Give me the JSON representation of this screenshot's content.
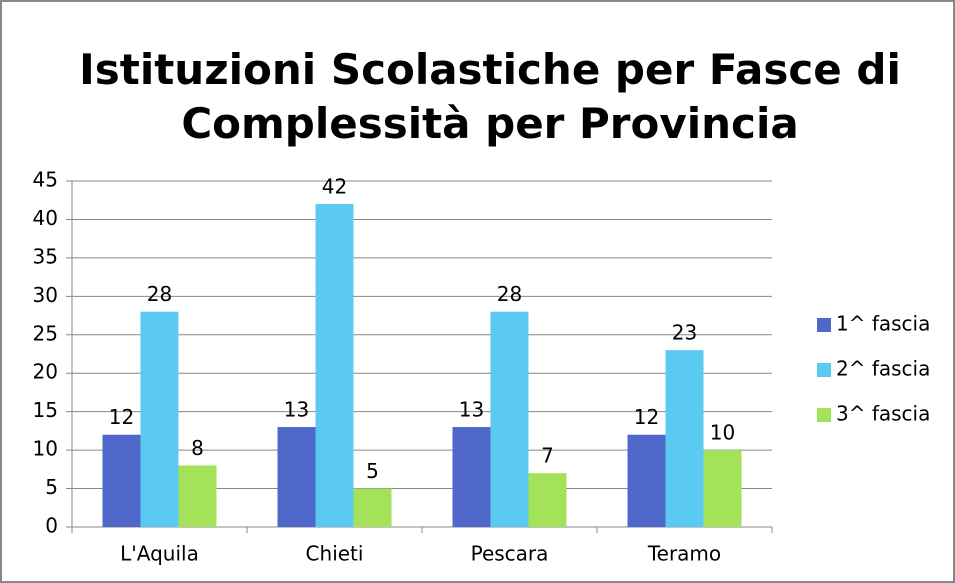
{
  "chart_data": {
    "type": "bar",
    "title": "Istituzioni Scolastiche per Fasce di Complessità per Provincia",
    "categories": [
      "L'Aquila",
      "Chieti",
      "Pescara",
      "Teramo"
    ],
    "series": [
      {
        "name": "1^ fascia",
        "color": "#4f67c8",
        "values": [
          12,
          13,
          13,
          12
        ]
      },
      {
        "name": "2^ fascia",
        "color": "#5bcaf2",
        "values": [
          28,
          42,
          28,
          23
        ]
      },
      {
        "name": "3^ fascia",
        "color": "#a3e259",
        "values": [
          8,
          5,
          7,
          10
        ]
      }
    ],
    "ylim": [
      0,
      45
    ],
    "yticks": [
      0,
      5,
      10,
      15,
      20,
      25,
      30,
      35,
      40,
      45
    ],
    "grid": true,
    "legend": "right"
  }
}
